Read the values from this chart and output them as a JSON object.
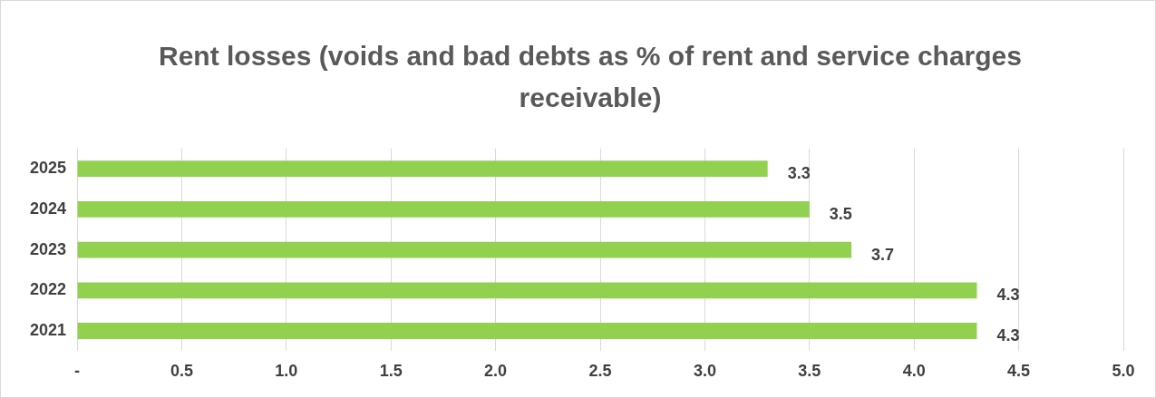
{
  "chart_data": {
    "type": "bar",
    "orientation": "horizontal",
    "title": "Rent losses (voids and bad debts as % of rent and service charges receivable)",
    "categories": [
      "2025",
      "2024",
      "2023",
      "2022",
      "2021"
    ],
    "values": [
      3.3,
      3.5,
      3.7,
      4.3,
      4.3
    ],
    "color": "#92d050",
    "xlim": [
      0,
      5
    ],
    "xticks": [
      {
        "value": 0,
        "label": "-"
      },
      0.5,
      {
        "value": 1,
        "label": "1.0"
      },
      1.5,
      {
        "value": 2,
        "label": "2.0"
      },
      2.5,
      {
        "value": 3,
        "label": "3.0"
      },
      3.5,
      {
        "value": 4,
        "label": "4.0"
      },
      4.5,
      {
        "value": 5,
        "label": "5.0"
      }
    ],
    "grid": "x",
    "legend": false,
    "data_labels": true
  }
}
